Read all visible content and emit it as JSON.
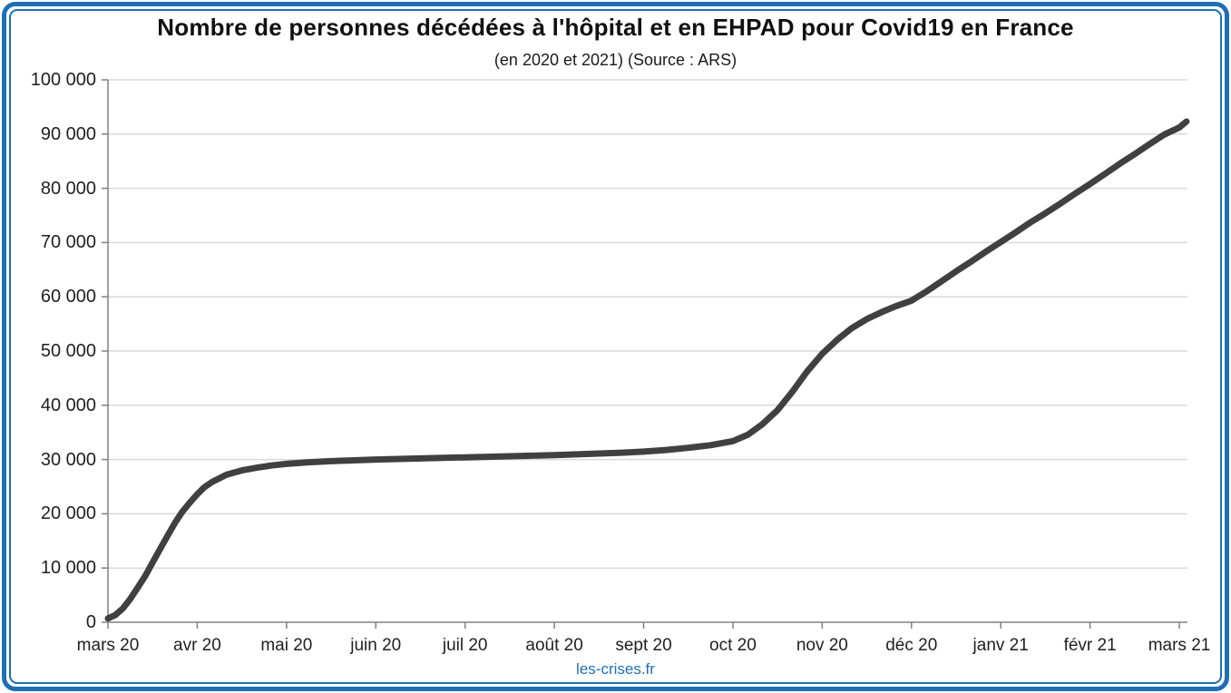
{
  "frame": {
    "border_color": "#1f6eb5",
    "background": "#ffffff"
  },
  "header": {
    "title": "Nombre de personnes décédées à l'hôpital et en EHPAD pour Covid19 en France",
    "subtitle": "(en 2020 et 2021) (Source : ARS)"
  },
  "footer": {
    "site_label": "les-crises.fr",
    "color": "#1f6fb5"
  },
  "chart_data": {
    "type": "line",
    "title": "Nombre de personnes décédées à l'hôpital et en EHPAD pour Covid19 en France",
    "subtitle": "(en 2020 et 2021) (Source : ARS)",
    "source": "ARS",
    "legend": "none",
    "grid": "horizontal",
    "gridline_color": "#d9d9d9",
    "axis_color": "#808080",
    "line_color": "#404040",
    "line_width": 7,
    "ylim": [
      0,
      100000
    ],
    "y_ticks": [
      0,
      10000,
      20000,
      30000,
      40000,
      50000,
      60000,
      70000,
      80000,
      90000,
      100000
    ],
    "y_tick_labels": [
      "0",
      "10 000",
      "20 000",
      "30 000",
      "40 000",
      "50 000",
      "60 000",
      "70 000",
      "80 000",
      "90 000",
      "100 000"
    ],
    "x_unit": "months since mars 2020",
    "x_ticks": [
      0,
      1,
      2,
      3,
      4,
      5,
      6,
      7,
      8,
      9,
      10,
      11,
      12
    ],
    "x_tick_labels": [
      "mars 20",
      "avr 20",
      "mai 20",
      "juin 20",
      "juil 20",
      "août 20",
      "sept 20",
      "oct 20",
      "nov 20",
      "déc 20",
      "janv 21",
      "févr 21",
      "mars 21"
    ],
    "series": [
      {
        "points": [
          [
            0,
            700
          ],
          [
            0.08,
            1300
          ],
          [
            0.17,
            2600
          ],
          [
            0.25,
            4300
          ],
          [
            0.33,
            6300
          ],
          [
            0.42,
            8600
          ],
          [
            0.5,
            11000
          ],
          [
            0.58,
            13400
          ],
          [
            0.67,
            16000
          ],
          [
            0.75,
            18300
          ],
          [
            0.83,
            20300
          ],
          [
            0.92,
            22100
          ],
          [
            1,
            23600
          ],
          [
            1.08,
            24900
          ],
          [
            1.17,
            25900
          ],
          [
            1.33,
            27200
          ],
          [
            1.5,
            28000
          ],
          [
            1.67,
            28500
          ],
          [
            1.83,
            28900
          ],
          [
            2,
            29200
          ],
          [
            2.25,
            29500
          ],
          [
            2.5,
            29700
          ],
          [
            2.75,
            29850
          ],
          [
            3,
            30000
          ],
          [
            3.25,
            30100
          ],
          [
            3.5,
            30200
          ],
          [
            3.75,
            30300
          ],
          [
            4,
            30400
          ],
          [
            4.25,
            30500
          ],
          [
            4.5,
            30600
          ],
          [
            4.75,
            30700
          ],
          [
            5,
            30800
          ],
          [
            5.25,
            30950
          ],
          [
            5.5,
            31100
          ],
          [
            5.75,
            31250
          ],
          [
            6,
            31450
          ],
          [
            6.25,
            31750
          ],
          [
            6.5,
            32150
          ],
          [
            6.75,
            32650
          ],
          [
            7,
            33400
          ],
          [
            7.17,
            34600
          ],
          [
            7.33,
            36500
          ],
          [
            7.5,
            39100
          ],
          [
            7.67,
            42600
          ],
          [
            7.83,
            46200
          ],
          [
            8,
            49500
          ],
          [
            8.17,
            52100
          ],
          [
            8.33,
            54200
          ],
          [
            8.5,
            55900
          ],
          [
            8.67,
            57200
          ],
          [
            8.83,
            58300
          ],
          [
            9,
            59300
          ],
          [
            9.17,
            61000
          ],
          [
            9.33,
            62800
          ],
          [
            9.5,
            64700
          ],
          [
            9.67,
            66500
          ],
          [
            9.83,
            68300
          ],
          [
            10,
            70100
          ],
          [
            10.17,
            71900
          ],
          [
            10.33,
            73700
          ],
          [
            10.5,
            75400
          ],
          [
            10.67,
            77200
          ],
          [
            10.83,
            79000
          ],
          [
            11,
            80800
          ],
          [
            11.17,
            82700
          ],
          [
            11.33,
            84500
          ],
          [
            11.5,
            86300
          ],
          [
            11.67,
            88200
          ],
          [
            11.83,
            89900
          ],
          [
            12,
            91200
          ],
          [
            12.08,
            92300
          ]
        ]
      }
    ]
  }
}
